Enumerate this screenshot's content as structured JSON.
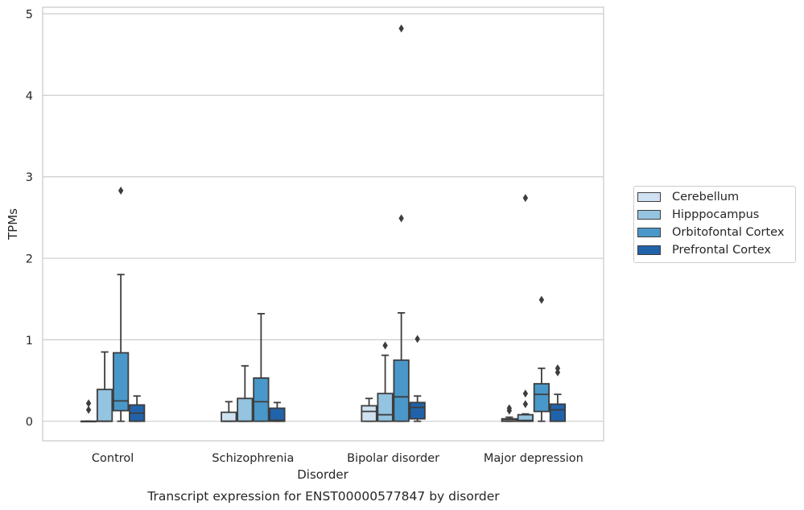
{
  "chart_data": {
    "type": "box",
    "title": "Transcript expression for ENST00000577847 by disorder",
    "xlabel": "Disorder",
    "ylabel": "TPMs",
    "ylim": [
      -0.24,
      5.08
    ],
    "yticks": [
      0,
      1,
      2,
      3,
      4,
      5
    ],
    "grid": "horizontal",
    "legend_position": "right",
    "categories": [
      "Control",
      "Schizophrenia",
      "Bipolar disorder",
      "Major depression"
    ],
    "series": [
      {
        "name": "Cerebellum",
        "color": "#d0e1f2",
        "boxes": [
          {
            "whislo": 0,
            "q1": 0,
            "med": 0,
            "q3": 0,
            "whishi": 0,
            "fliers": [
              0.14,
              0.22
            ]
          },
          {
            "whislo": 0,
            "q1": 0,
            "med": 0,
            "q3": 0.11,
            "whishi": 0.24,
            "fliers": []
          },
          {
            "whislo": 0,
            "q1": 0,
            "med": 0.12,
            "q3": 0.19,
            "whishi": 0.28,
            "fliers": []
          },
          {
            "whislo": 0,
            "q1": 0,
            "med": 0.02,
            "q3": 0.03,
            "whishi": 0.05,
            "fliers": [
              0.13,
              0.16
            ]
          }
        ]
      },
      {
        "name": "Hipppocampus",
        "color": "#94c4df",
        "boxes": [
          {
            "whislo": 0,
            "q1": 0,
            "med": 0,
            "q3": 0.39,
            "whishi": 0.85,
            "fliers": []
          },
          {
            "whislo": 0,
            "q1": 0,
            "med": 0,
            "q3": 0.28,
            "whishi": 0.68,
            "fliers": []
          },
          {
            "whislo": 0,
            "q1": 0,
            "med": 0.08,
            "q3": 0.34,
            "whishi": 0.81,
            "fliers": [
              0.93
            ]
          },
          {
            "whislo": 0,
            "q1": 0,
            "med": 0.01,
            "q3": 0.08,
            "whishi": 0.09,
            "fliers": [
              0.21,
              0.34,
              2.74
            ]
          }
        ]
      },
      {
        "name": "Orbitofontal Cortex",
        "color": "#4a98c9",
        "boxes": [
          {
            "whislo": 0,
            "q1": 0.13,
            "med": 0.25,
            "q3": 0.84,
            "whishi": 1.8,
            "fliers": [
              2.83
            ]
          },
          {
            "whislo": 0,
            "q1": 0,
            "med": 0.24,
            "q3": 0.53,
            "whishi": 1.32,
            "fliers": []
          },
          {
            "whislo": 0,
            "q1": 0,
            "med": 0.3,
            "q3": 0.75,
            "whishi": 1.33,
            "fliers": [
              2.49,
              4.82
            ]
          },
          {
            "whislo": 0,
            "q1": 0.12,
            "med": 0.33,
            "q3": 0.46,
            "whishi": 0.65,
            "fliers": [
              1.49
            ]
          }
        ]
      },
      {
        "name": "Prefrontal Cortex",
        "color": "#2163aa",
        "boxes": [
          {
            "whislo": 0,
            "q1": 0,
            "med": 0.1,
            "q3": 0.2,
            "whishi": 0.31,
            "fliers": []
          },
          {
            "whislo": 0,
            "q1": 0,
            "med": 0.01,
            "q3": 0.16,
            "whishi": 0.23,
            "fliers": []
          },
          {
            "whislo": 0,
            "q1": 0.03,
            "med": 0.17,
            "q3": 0.23,
            "whishi": 0.31,
            "fliers": [
              1.01
            ]
          },
          {
            "whislo": 0,
            "q1": 0,
            "med": 0.14,
            "q3": 0.21,
            "whishi": 0.33,
            "fliers": [
              0.6,
              0.65
            ]
          }
        ]
      }
    ]
  }
}
